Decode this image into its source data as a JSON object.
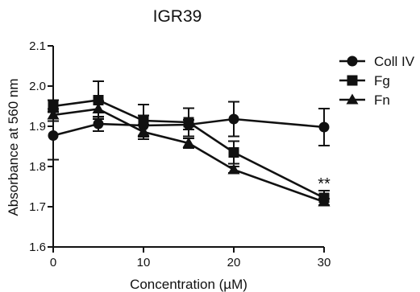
{
  "chart_data": {
    "type": "line",
    "title": "IGR39",
    "xlabel": "Concentration (µM)",
    "ylabel": "Absorbance at 560 nm",
    "xlim": [
      0,
      30
    ],
    "ylim": [
      1.6,
      2.1
    ],
    "x_ticks": [
      0,
      10,
      20,
      30
    ],
    "y_ticks": [
      1.6,
      1.7,
      1.8,
      1.9,
      2.0,
      2.1
    ],
    "y_tick_labels": [
      "1.6",
      "1.7",
      "1.8",
      "1.9",
      "2.0",
      "2.1"
    ],
    "grid": false,
    "legend_position": "top-right",
    "x": [
      0,
      5,
      10,
      15,
      20,
      30
    ],
    "series": [
      {
        "name": "Coll IV",
        "marker": "circle",
        "values": [
          1.877,
          1.906,
          1.902,
          1.904,
          1.918,
          1.898
        ],
        "errors": [
          0.06,
          0.018,
          0.025,
          0.012,
          0.043,
          0.046
        ]
      },
      {
        "name": "Fg",
        "marker": "square",
        "values": [
          1.95,
          1.965,
          1.914,
          1.91,
          1.835,
          1.722
        ],
        "errors": [
          0.015,
          0.047,
          0.04,
          0.035,
          0.028,
          0.018
        ]
      },
      {
        "name": "Fn",
        "marker": "triangle",
        "values": [
          1.928,
          1.943,
          1.886,
          1.858,
          1.792,
          1.712
        ],
        "errors": [
          0.015,
          0.02,
          0.018,
          0.012,
          0.008,
          0.008
        ]
      }
    ],
    "annotations": [
      {
        "text": "**",
        "x": 30
      }
    ],
    "colors": {
      "line": "#111111",
      "background": "#ffffff"
    }
  }
}
